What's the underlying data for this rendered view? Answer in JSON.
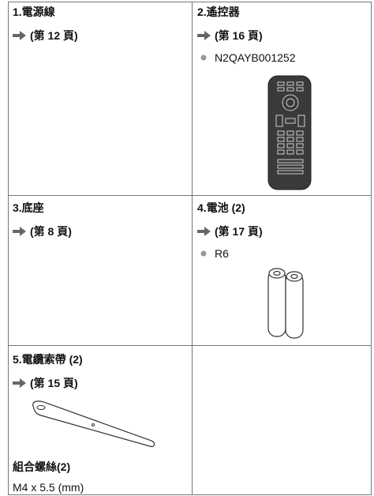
{
  "cells": [
    {
      "title": "1.電源線",
      "ref": "(第 12 頁)"
    },
    {
      "title": "2.遙控器",
      "ref": "(第 16 頁)",
      "note": "N2QAYB001252"
    },
    {
      "title": "3.底座",
      "ref": "(第 8 頁)"
    },
    {
      "title": "4.電池 (2)",
      "ref": "(第 17 頁)",
      "note": "R6"
    },
    {
      "title": "5.電纜索帶 (2)",
      "ref": "(第 15 頁)",
      "extra_title": "組合螺絲(2)",
      "extra_text": "M4 x 5.5 (mm)"
    }
  ]
}
